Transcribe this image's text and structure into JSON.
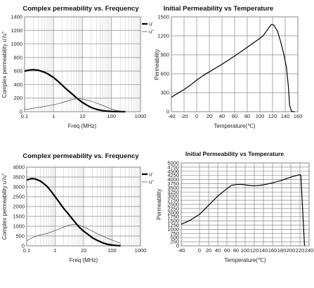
{
  "chart_data": [
    {
      "type": "line",
      "title": "Complex permeability vs. Frequency",
      "xlabel": "Freq (MHz)",
      "ylabel": "Complex permeability u'/u\"",
      "xscale": "log",
      "xlim": [
        0.1,
        1000
      ],
      "ylim": [
        0,
        1400
      ],
      "xticks": [
        "0.1",
        "1",
        "10",
        "100",
        "1000"
      ],
      "yticks": [
        "0",
        "200",
        "400",
        "600",
        "800",
        "1000",
        "1200",
        "1400"
      ],
      "legend_position": "right",
      "series": [
        {
          "name": "u'",
          "style": "bold",
          "color": "#000000",
          "x": [
            0.1,
            0.15,
            0.2,
            0.3,
            0.5,
            0.7,
            1,
            1.5,
            2,
            3,
            5,
            7,
            10,
            15,
            20,
            30,
            50,
            70,
            100,
            150,
            200,
            300
          ],
          "y": [
            600,
            615,
            620,
            612,
            580,
            548,
            505,
            440,
            390,
            320,
            240,
            185,
            135,
            90,
            62,
            35,
            15,
            8,
            4,
            2,
            1,
            0
          ]
        },
        {
          "name": "u\"",
          "style": "thin",
          "color": "#444444",
          "x": [
            0.1,
            0.2,
            0.3,
            0.5,
            0.7,
            1,
            1.5,
            2,
            3,
            4,
            5,
            6,
            7,
            8,
            10,
            15,
            20,
            30,
            50,
            70,
            100,
            150,
            200,
            300
          ],
          "y": [
            30,
            50,
            62,
            78,
            90,
            102,
            120,
            135,
            158,
            175,
            185,
            190,
            192,
            190,
            185,
            170,
            155,
            128,
            92,
            65,
            40,
            18,
            8,
            2
          ]
        }
      ]
    },
    {
      "type": "line",
      "title": "Initial Permeability vs Temperature",
      "xlabel": "Temperature(℃)",
      "ylabel": "Permeability",
      "xlim": [
        -40,
        160
      ],
      "ylim": [
        0,
        1500
      ],
      "xticks": [
        "-40",
        "-20",
        "0",
        "20",
        "40",
        "60",
        "80",
        "100",
        "120",
        "140",
        "160"
      ],
      "yticks": [
        "0",
        "300",
        "600",
        "900",
        "1200",
        "1500"
      ],
      "series": [
        {
          "name": "",
          "style": "normal",
          "color": "#000000",
          "x": [
            -40,
            -30,
            -20,
            -10,
            0,
            10,
            20,
            30,
            40,
            50,
            60,
            70,
            80,
            90,
            100,
            105,
            110,
            115,
            118,
            122,
            128,
            133,
            138,
            142,
            145,
            147,
            150,
            155
          ],
          "y": [
            230,
            290,
            350,
            420,
            500,
            570,
            630,
            690,
            750,
            815,
            880,
            950,
            1020,
            1090,
            1160,
            1200,
            1270,
            1340,
            1380,
            1370,
            1270,
            1100,
            900,
            700,
            400,
            100,
            5,
            0
          ]
        }
      ]
    },
    {
      "type": "line",
      "title": "Complex permeability vs. Frequency",
      "xlabel": "Freq (MHz)",
      "ylabel": "Complex permeability u'/u\"",
      "xscale": "log",
      "xlim": [
        0.1,
        1000
      ],
      "ylim": [
        0,
        4000
      ],
      "xticks": [
        "0.1",
        "1",
        "10",
        "100",
        "1000"
      ],
      "yticks": [
        "0",
        "500",
        "1000",
        "1500",
        "2000",
        "2500",
        "3000",
        "3500",
        "4000"
      ],
      "legend_position": "right",
      "series": [
        {
          "name": "u'",
          "style": "bold",
          "color": "#000000",
          "x": [
            0.1,
            0.15,
            0.2,
            0.3,
            0.5,
            0.7,
            1,
            1.5,
            2,
            3,
            5,
            7,
            10,
            15,
            20,
            30,
            50,
            70,
            100,
            150,
            200
          ],
          "y": [
            3350,
            3420,
            3400,
            3300,
            3050,
            2800,
            2500,
            2150,
            1900,
            1600,
            1200,
            950,
            750,
            560,
            420,
            280,
            140,
            80,
            40,
            15,
            5
          ]
        },
        {
          "name": "u\"",
          "style": "thin",
          "color": "#444444",
          "x": [
            0.1,
            0.15,
            0.2,
            0.3,
            0.5,
            0.7,
            1,
            1.5,
            2,
            3,
            4,
            5,
            7,
            10,
            15,
            20,
            30,
            50,
            70,
            100,
            150,
            200
          ],
          "y": [
            250,
            400,
            480,
            550,
            620,
            700,
            780,
            880,
            960,
            1050,
            1080,
            1080,
            1050,
            960,
            850,
            760,
            620,
            480,
            380,
            300,
            200,
            120
          ]
        }
      ]
    },
    {
      "type": "line",
      "title": "Initial Permeability vs Temperature",
      "xlabel": "Temperature(℃)",
      "ylabel": "Permeability",
      "xlim": [
        -40,
        240
      ],
      "ylim": [
        0,
        5000
      ],
      "xticks": [
        "-40",
        "0",
        "20",
        "40",
        "60",
        "80",
        "100",
        "120",
        "140",
        "160",
        "180",
        "200",
        "220",
        "240"
      ],
      "yticks": [
        "0",
        "250",
        "500",
        "750",
        "1000",
        "1250",
        "1500",
        "1750",
        "2000",
        "2250",
        "2500",
        "2750",
        "3000",
        "3250",
        "3500",
        "3750",
        "4000",
        "4250",
        "4500",
        "4750",
        "5000"
      ],
      "series": [
        {
          "name": "",
          "style": "normal",
          "color": "#000000",
          "x": [
            -40,
            -20,
            0,
            20,
            40,
            60,
            70,
            80,
            90,
            100,
            110,
            120,
            130,
            140,
            150,
            160,
            180,
            200,
            220,
            222,
            230
          ],
          "y": [
            1300,
            1550,
            1900,
            2450,
            3000,
            3450,
            3650,
            3700,
            3710,
            3680,
            3640,
            3620,
            3640,
            3680,
            3740,
            3800,
            3950,
            4150,
            4300,
            4250,
            10
          ]
        }
      ]
    }
  ]
}
